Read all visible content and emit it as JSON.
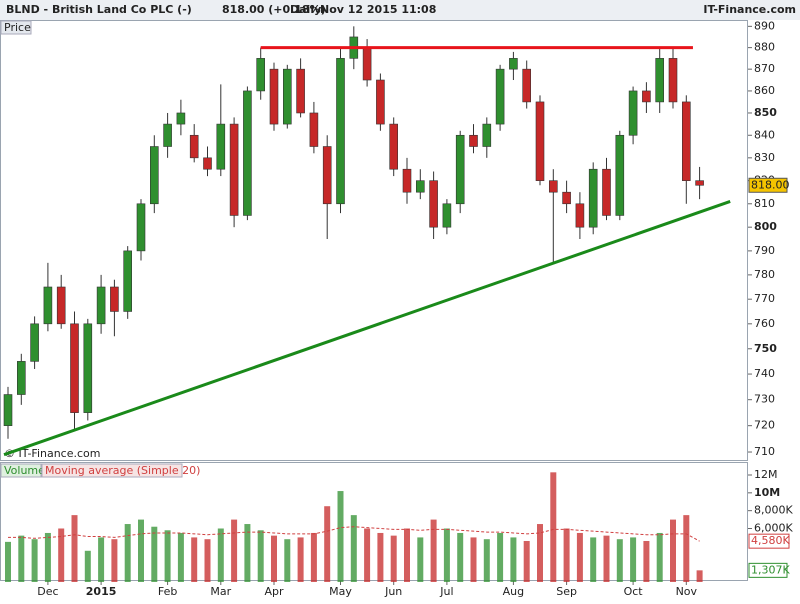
{
  "chart_data": {
    "type": "candlestick",
    "title": "BLND - British Land Co PLC (-)",
    "quote": "818.00 (+0.18%)",
    "period": "Daily",
    "timestamp": "Nov 12 2015 11:08",
    "source": "IT-Finance.com",
    "copyright": "© IT-Finance.com",
    "price_label": "Price",
    "categories": [
      null,
      null,
      null,
      "Dec",
      null,
      null,
      null,
      "2015",
      null,
      null,
      null,
      null,
      "Feb",
      null,
      null,
      null,
      "Mar",
      null,
      null,
      null,
      "Apr",
      null,
      null,
      null,
      null,
      "May",
      null,
      null,
      null,
      "Jun",
      null,
      null,
      null,
      "Jul",
      null,
      null,
      null,
      null,
      "Aug",
      null,
      null,
      null,
      "Sep",
      null,
      null,
      null,
      null,
      "Oct",
      null,
      null,
      null,
      "Nov",
      null
    ],
    "open": [
      720,
      732,
      745,
      760,
      775,
      760,
      725,
      760,
      775,
      765,
      790,
      810,
      835,
      845,
      840,
      830,
      825,
      845,
      805,
      860,
      870,
      845,
      870,
      850,
      835,
      810,
      875,
      880,
      865,
      845,
      825,
      815,
      820,
      800,
      810,
      840,
      835,
      845,
      870,
      870,
      855,
      820,
      815,
      810,
      800,
      825,
      805,
      840,
      860,
      855,
      875,
      855,
      820
    ],
    "high": [
      735,
      748,
      763,
      785,
      780,
      765,
      762,
      780,
      778,
      792,
      812,
      840,
      850,
      856,
      845,
      835,
      863,
      848,
      862,
      880,
      873,
      872,
      875,
      855,
      840,
      880,
      890,
      884,
      868,
      848,
      830,
      825,
      824,
      812,
      842,
      845,
      848,
      872,
      878,
      874,
      858,
      825,
      820,
      815,
      828,
      830,
      842,
      862,
      864,
      880,
      880,
      858,
      826
    ],
    "low": [
      715,
      728,
      742,
      757,
      758,
      718,
      722,
      756,
      755,
      762,
      786,
      806,
      830,
      840,
      828,
      822,
      822,
      800,
      803,
      856,
      842,
      843,
      848,
      832,
      795,
      806,
      870,
      862,
      842,
      822,
      810,
      812,
      795,
      797,
      806,
      832,
      830,
      842,
      865,
      852,
      818,
      785,
      806,
      795,
      797,
      803,
      803,
      836,
      850,
      850,
      852,
      810,
      812
    ],
    "close": [
      732,
      745,
      760,
      775,
      760,
      725,
      760,
      775,
      765,
      790,
      810,
      835,
      845,
      850,
      830,
      825,
      845,
      805,
      860,
      875,
      845,
      870,
      850,
      835,
      810,
      875,
      885,
      865,
      845,
      825,
      815,
      820,
      800,
      810,
      840,
      835,
      845,
      870,
      875,
      855,
      820,
      815,
      810,
      800,
      825,
      805,
      840,
      860,
      855,
      875,
      855,
      820,
      818
    ],
    "up_color": "#2f8f2f",
    "down_color": "#c62828",
    "log_scale": true,
    "ylim": [
      707,
      893
    ],
    "yticks": [
      710,
      720,
      730,
      740,
      750,
      760,
      770,
      780,
      790,
      800,
      810,
      820,
      830,
      840,
      850,
      860,
      870,
      880,
      890
    ],
    "last_price": {
      "value": 818,
      "label": "818.00"
    },
    "trendlines": [
      {
        "color": "#e8141b",
        "points": [
          [
            19,
            880
          ],
          [
            51.5,
            880
          ]
        ]
      },
      {
        "color": "#1a8a1a",
        "points": [
          [
            -0.3,
            709
          ],
          [
            54.3,
            811
          ]
        ]
      }
    ],
    "volume": {
      "name": "Volume",
      "values": [
        4500000,
        5200000,
        4800000,
        5500000,
        6000000,
        7500000,
        3500000,
        5000000,
        4800000,
        6500000,
        7000000,
        6200000,
        5800000,
        5500000,
        5000000,
        4800000,
        6000000,
        7000000,
        6500000,
        5800000,
        5200000,
        4800000,
        5000000,
        5500000,
        8500000,
        10200000,
        7500000,
        6000000,
        5500000,
        5200000,
        6000000,
        5000000,
        7000000,
        6000000,
        5500000,
        5000000,
        4800000,
        5500000,
        5000000,
        4600000,
        6500000,
        12300000,
        6000000,
        5500000,
        5000000,
        5200000,
        4800000,
        5000000,
        4600000,
        5500000,
        7000000,
        7500000,
        1307000
      ],
      "ylim": [
        0,
        12000000
      ],
      "yticks": [
        {
          "value": 12000000,
          "label": "12M"
        },
        {
          "value": 10000000,
          "label": "10M"
        },
        {
          "value": 8000000,
          "label": "8,000K"
        },
        {
          "value": 6000000,
          "label": "6,000K"
        }
      ],
      "last": {
        "value": 1307000,
        "label": "1,307K"
      },
      "ma": {
        "name": "Moving average (Simple 20)",
        "color": "#d04040",
        "values": [
          5000000,
          5000000,
          4900000,
          5000000,
          5100000,
          5300000,
          5100000,
          5100000,
          5000000,
          5200000,
          5400000,
          5500000,
          5500000,
          5500000,
          5400000,
          5300000,
          5400000,
          5500000,
          5600000,
          5600000,
          5500000,
          5400000,
          5400000,
          5400000,
          5700000,
          6100000,
          6200000,
          6100000,
          6000000,
          5900000,
          5900000,
          5800000,
          5900000,
          5900000,
          5800000,
          5700000,
          5600000,
          5600000,
          5500000,
          5400000,
          5500000,
          5900000,
          5900000,
          5800000,
          5700000,
          5600000,
          5500000,
          5400000,
          5300000,
          5300000,
          5400000,
          5400000,
          4580000
        ],
        "last": {
          "value": 4580000,
          "label": "4,580K"
        }
      }
    }
  }
}
